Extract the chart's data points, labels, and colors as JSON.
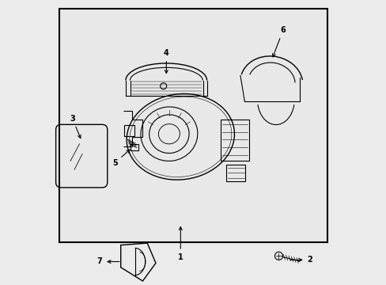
{
  "bg_color": "#ebebeb",
  "box_bg": "#e8e8e8",
  "box_border": "#000000",
  "line_color": "#000000",
  "label_color": "#000000",
  "figsize": [
    4.89,
    3.6
  ],
  "dpi": 100
}
